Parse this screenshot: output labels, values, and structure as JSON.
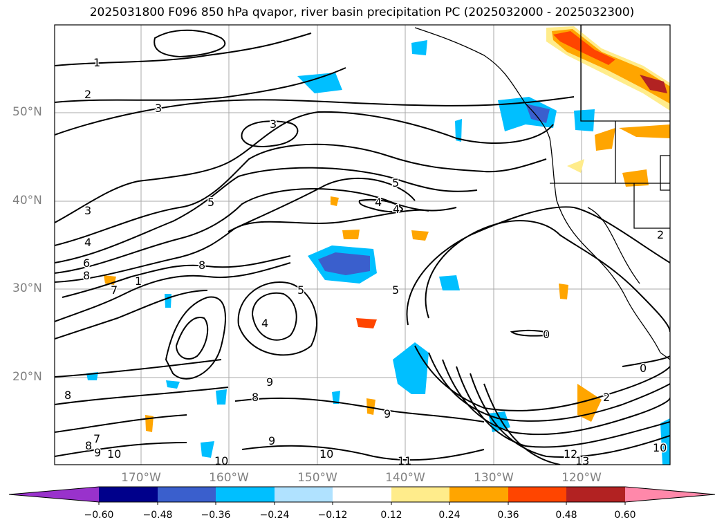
{
  "title": "2025031800 F096 850 hPa qvapor, river basin precipitation PC (2025032000 - 2025032300)",
  "lat_labels": [
    "50°N",
    "40°N",
    "30°N",
    "20°N"
  ],
  "lon_labels": [
    "170°W",
    "160°W",
    "150°W",
    "140°W",
    "130°W",
    "120°W"
  ],
  "contour_labels": [
    "1",
    "2",
    "3",
    "3",
    "3",
    "4",
    "5",
    "5",
    "4",
    "4",
    "6",
    "8",
    "8",
    "7",
    "5",
    "4",
    "5",
    "9",
    "8",
    "9",
    "10",
    "10",
    "11",
    "12",
    "13",
    "10",
    "9",
    "8",
    "7",
    "8",
    "9",
    "10",
    "2",
    "0",
    "0",
    "1",
    "2"
  ],
  "colorbar": {
    "tick_labels": [
      "−0.60",
      "−0.48",
      "−0.36",
      "−0.24",
      "−0.12",
      "0.12",
      "0.24",
      "0.36",
      "0.48",
      "0.60"
    ],
    "colors": [
      "#9932cc",
      "#00008b",
      "#3a5fcd",
      "#00bfff",
      "#b0e2ff",
      "#ffffff",
      "#ffec8b",
      "#ffa500",
      "#ff4500",
      "#b22222",
      "#ff88aa"
    ],
    "extend": "both"
  },
  "style": {
    "gridline_color": "#aaaaaa",
    "contour_color": "#000000",
    "label_color": "#808080"
  }
}
